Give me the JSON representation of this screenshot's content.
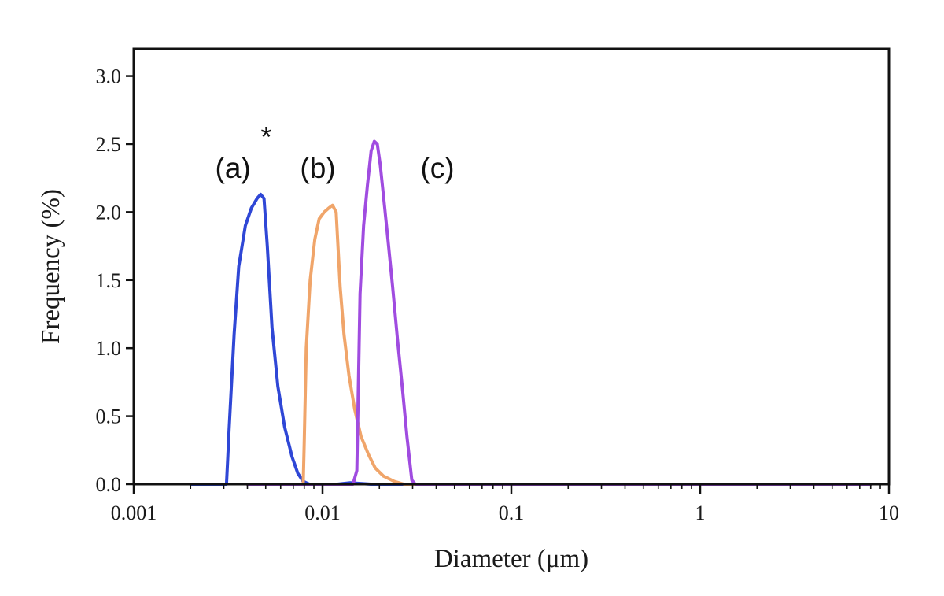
{
  "chart_data": {
    "type": "line",
    "xscale": "log",
    "xlim": [
      0.001,
      10
    ],
    "ylim": [
      0,
      3.2
    ],
    "xlabel": "Diameter (μm)",
    "ylabel": "Frequency (%)",
    "x_tick_labels": [
      "0.001",
      "0.01",
      "0.1",
      "1",
      "10"
    ],
    "x_ticks": [
      0.001,
      0.01,
      0.1,
      1,
      10
    ],
    "y_tick_labels": [
      "0.0",
      "0.5",
      "1.0",
      "1.5",
      "2.0",
      "2.5",
      "3.0"
    ],
    "y_ticks": [
      0,
      0.5,
      1.0,
      1.5,
      2.0,
      2.5,
      3.0
    ],
    "grid": false,
    "series": [
      {
        "name": "(a)",
        "color": "#2f47d6",
        "x": [
          0.002,
          0.0031,
          0.00315,
          0.0032,
          0.0034,
          0.0036,
          0.0039,
          0.0042,
          0.0045,
          0.0047,
          0.0049,
          0.0051,
          0.0054,
          0.0058,
          0.0063,
          0.0069,
          0.0074,
          0.0079,
          0.0085,
          0.01,
          0.012,
          0.014,
          0.018,
          0.025,
          8.0
        ],
        "y": [
          0.0,
          0.0,
          0.2,
          0.4,
          1.1,
          1.6,
          1.9,
          2.03,
          2.1,
          2.13,
          2.1,
          1.75,
          1.15,
          0.72,
          0.42,
          0.2,
          0.08,
          0.02,
          0.0,
          0.0,
          0.0,
          0.01,
          0.0,
          0.0,
          0.0
        ]
      },
      {
        "name": "(b)",
        "color": "#f0a56a",
        "x": [
          0.004,
          0.0079,
          0.008,
          0.0082,
          0.0086,
          0.0091,
          0.0096,
          0.0102,
          0.0108,
          0.0113,
          0.0118,
          0.0124,
          0.013,
          0.0138,
          0.0148,
          0.016,
          0.0175,
          0.019,
          0.021,
          0.024,
          0.027,
          0.03,
          8.0
        ],
        "y": [
          0.0,
          0.0,
          0.3,
          1.0,
          1.5,
          1.8,
          1.95,
          2.0,
          2.03,
          2.05,
          2.0,
          1.45,
          1.1,
          0.8,
          0.55,
          0.35,
          0.22,
          0.12,
          0.06,
          0.02,
          0.0,
          0.0,
          0.0
        ]
      },
      {
        "name": "(c)",
        "color": "#a04ce0",
        "x": [
          0.004,
          0.0145,
          0.0152,
          0.0158,
          0.0165,
          0.0173,
          0.0181,
          0.0188,
          0.0195,
          0.0202,
          0.0211,
          0.0222,
          0.0235,
          0.025,
          0.0265,
          0.028,
          0.0297,
          0.031,
          8.0
        ],
        "y": [
          0.0,
          0.0,
          0.1,
          1.4,
          1.9,
          2.2,
          2.45,
          2.52,
          2.5,
          2.35,
          2.1,
          1.8,
          1.45,
          1.05,
          0.7,
          0.35,
          0.03,
          0.0,
          0.0
        ]
      }
    ],
    "annotations": [
      {
        "text": "(a)",
        "x": 0.0027,
        "y": 2.25
      },
      {
        "text": "*",
        "x": 0.0047,
        "y": 2.48
      },
      {
        "text": "(b)",
        "x": 0.0076,
        "y": 2.25
      },
      {
        "text": "(c)",
        "x": 0.033,
        "y": 2.25
      }
    ]
  }
}
